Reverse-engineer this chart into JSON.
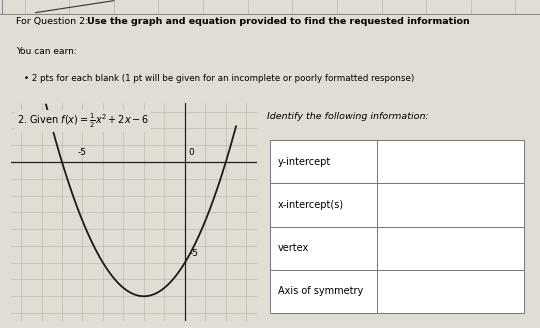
{
  "header_text1": "For Question 2: ",
  "header_text2": "Use the graph and equation provided to find the requested information",
  "header_line2": "You can earn:",
  "header_bullet": "2 pts for each blank (1 pt will be given for an incomplete or poorly formatted response)",
  "problem_text": "2. Given f(x) =",
  "right_header": "Identify the following information:",
  "table_rows": [
    "y-intercept",
    "x-intercept(s)",
    "vertex",
    "Axis of symmetry"
  ],
  "bg_color": "#e0ddd4",
  "graph_bg": "#cac7b8",
  "table_bg": "#dedad0",
  "curve_color": "#1a1a1a",
  "axis_color": "#222222",
  "grid_color": "#b8b4a4",
  "top_strip_color": "#d0cdc4",
  "x_range": [
    -8.5,
    3.5
  ],
  "y_range": [
    -9.5,
    3.5
  ]
}
